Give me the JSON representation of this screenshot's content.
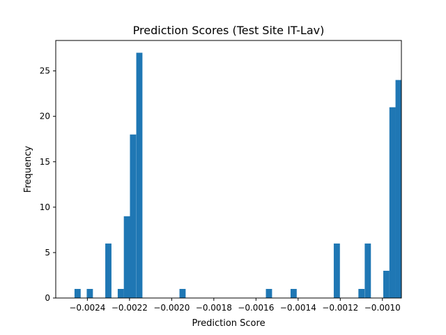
{
  "chart_data": {
    "type": "bar",
    "title": "Prediction Scores (Test Site IT-Lav)",
    "xlabel": "Prediction Score",
    "ylabel": "Frequency",
    "xlim": [
      -0.00255,
      -0.00091
    ],
    "ylim": [
      0,
      28.35
    ],
    "bin_width": 2.93e-05,
    "bar_color": "#1f77b4",
    "x_ticks": [
      -0.0024,
      -0.0022,
      -0.002,
      -0.0018,
      -0.0016,
      -0.0014,
      -0.0012,
      -0.001
    ],
    "x_tick_labels": [
      "−0.0024",
      "−0.0022",
      "−0.0020",
      "−0.0018",
      "−0.0016",
      "−0.0014",
      "−0.0012",
      "−0.0010"
    ],
    "y_ticks": [
      0,
      5,
      10,
      15,
      20,
      25
    ],
    "y_tick_labels": [
      "0",
      "5",
      "10",
      "15",
      "20",
      "25"
    ],
    "bins": [
      {
        "x": -0.002461,
        "count": 1
      },
      {
        "x": -0.002403,
        "count": 1
      },
      {
        "x": -0.002315,
        "count": 6
      },
      {
        "x": -0.002256,
        "count": 1
      },
      {
        "x": -0.002227,
        "count": 9
      },
      {
        "x": -0.002198,
        "count": 18
      },
      {
        "x": -0.002168,
        "count": 27
      },
      {
        "x": -0.001963,
        "count": 1
      },
      {
        "x": -0.001553,
        "count": 1
      },
      {
        "x": -0.001436,
        "count": 1
      },
      {
        "x": -0.001231,
        "count": 6
      },
      {
        "x": -0.001114,
        "count": 1
      },
      {
        "x": -0.001084,
        "count": 6
      },
      {
        "x": -0.000996,
        "count": 3
      },
      {
        "x": -0.000967,
        "count": 21
      },
      {
        "x": -0.000938,
        "count": 24
      }
    ],
    "grid": false,
    "legend": "none"
  }
}
